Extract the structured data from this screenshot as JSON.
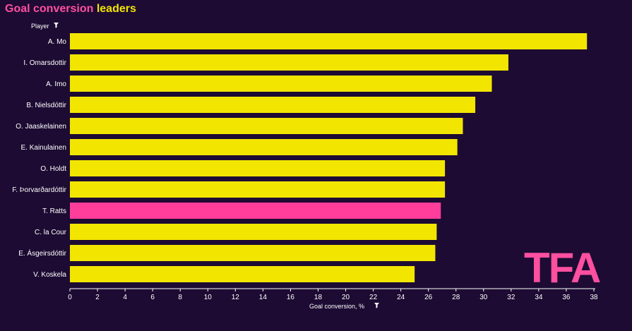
{
  "header": {
    "title_part1": "Goal conversion",
    "title_part2": "leaders"
  },
  "logo": {
    "text": "TFA"
  },
  "colors": {
    "background": "#1d0b33",
    "bar_default": "#f2e600",
    "bar_highlight": "#ff3d9a",
    "title_pink": "#ff4fa0",
    "title_yellow": "#f2e600"
  },
  "chart_data": {
    "type": "bar",
    "orientation": "horizontal",
    "title": "Goal conversion leaders",
    "ylabel": "Player",
    "xlabel": "Goal conversion, %",
    "xlim": [
      0,
      38
    ],
    "xticks": [
      0,
      2,
      4,
      6,
      8,
      10,
      12,
      14,
      16,
      18,
      20,
      22,
      24,
      26,
      28,
      30,
      32,
      34,
      36,
      38
    ],
    "grid": false,
    "categories": [
      "A. Mo",
      "I. Omarsdottir",
      "A. Imo",
      "B. Nielsdóttir",
      "O. Jaaskelainen",
      "E. Kainulainen",
      "O. Holdt",
      "F. Þorvarðardóttir",
      "T. Ratts",
      "C. la Cour",
      "E. Ásgeirsdóttir",
      "V. Koskela"
    ],
    "values": [
      37.5,
      31.8,
      30.6,
      29.4,
      28.5,
      28.1,
      27.2,
      27.2,
      26.9,
      26.6,
      26.5,
      25.0
    ],
    "highlight": "T. Ratts"
  }
}
